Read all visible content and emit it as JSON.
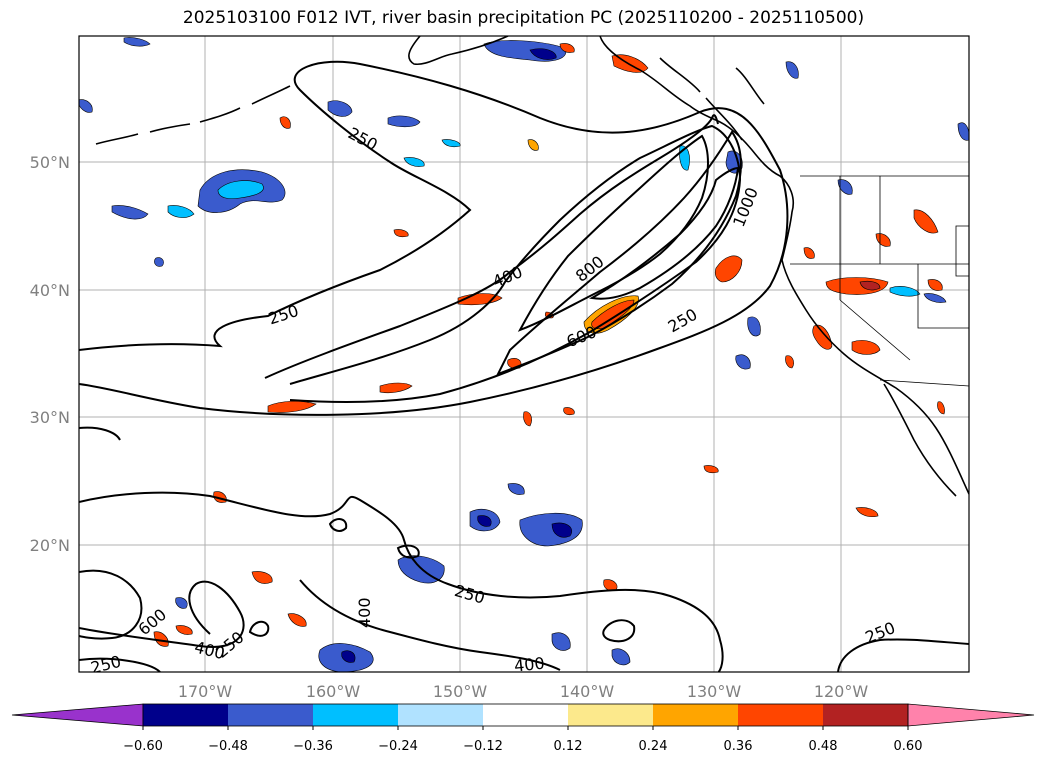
{
  "title": "2025103100 F012 IVT, river basin precipitation PC (2025110200 - 2025110500)",
  "map": {
    "lat_labels": [
      "50°N",
      "40°N",
      "30°N",
      "20°N"
    ],
    "lon_labels": [
      "170°W",
      "160°W",
      "150°W",
      "140°W",
      "130°W",
      "120°W"
    ],
    "contour_labels": [
      "250",
      "400",
      "600",
      "800",
      "1000",
      "250",
      "250",
      "250",
      "250",
      "600",
      "400",
      "400",
      "400",
      "250",
      "250"
    ]
  },
  "colorbar": {
    "ticks": [
      "−0.60",
      "−0.48",
      "−0.36",
      "−0.24",
      "−0.12",
      "0.12",
      "0.24",
      "0.36",
      "0.48",
      "0.60"
    ],
    "colors": [
      "#9932cc",
      "#00008b",
      "#3a5bcd",
      "#00bfff",
      "#b0e2ff",
      "#ffffff",
      "#fce98c",
      "#ffa500",
      "#ff4500",
      "#b22222",
      "#ff82ab"
    ]
  }
}
